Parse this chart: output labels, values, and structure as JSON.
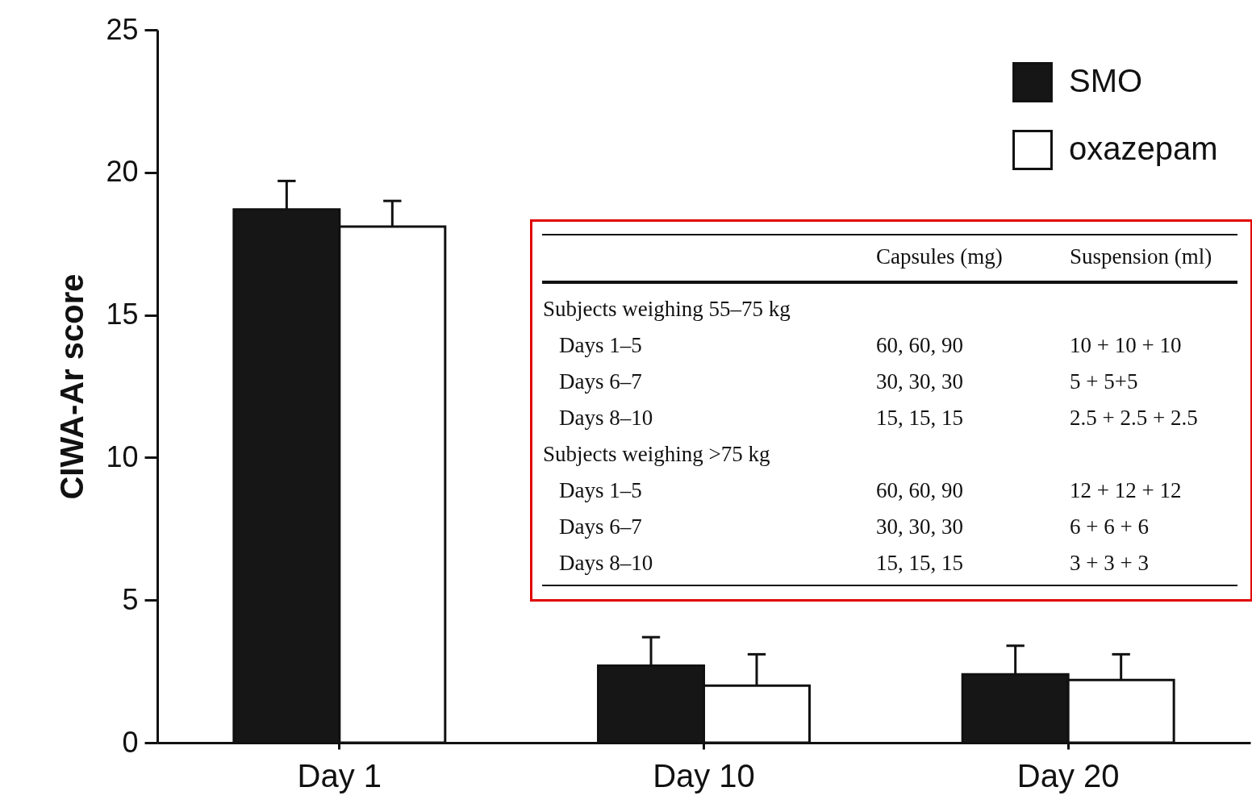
{
  "chart_data": {
    "type": "bar",
    "ylabel": "CIWA-Ar score",
    "categories": [
      "Day 1",
      "Day 10",
      "Day 20"
    ],
    "series": [
      {
        "name": "SMO",
        "color": "#161616",
        "values": [
          18.7,
          2.7,
          2.4
        ],
        "errors": [
          [
            18.7,
            19.7
          ],
          [
            2.7,
            3.7
          ],
          [
            2.4,
            3.4
          ]
        ]
      },
      {
        "name": "oxazepam",
        "color": "#ffffff",
        "values": [
          18.1,
          2.0,
          2.2
        ],
        "errors": [
          [
            18.1,
            19.0
          ],
          [
            2.0,
            3.1
          ],
          [
            2.2,
            3.1
          ]
        ]
      }
    ],
    "ylim": [
      0,
      25
    ],
    "yticks": [
      0,
      5,
      10,
      15,
      20,
      25
    ],
    "legend": "top right",
    "annotations": [
      "Capsules (mg)",
      "Suspension (ml)",
      "Subjects weighing 55–75 kg",
      "Days 1–5",
      "60, 60, 90",
      "10 + 10 + 10",
      "Days 6–7",
      "30, 30, 30",
      "5 + 5+5",
      "Days 8–10",
      "15, 15, 15",
      "2.5 + 2.5 + 2.5",
      "Subjects weighing >75 kg",
      "Days 1–5",
      "60, 60, 90",
      "12 + 12 + 12",
      "Days 6–7",
      "30, 30, 30",
      "6 + 6 + 6",
      "Days 8–10",
      "15, 15, 15",
      "3 + 3 + 3"
    ]
  }
}
